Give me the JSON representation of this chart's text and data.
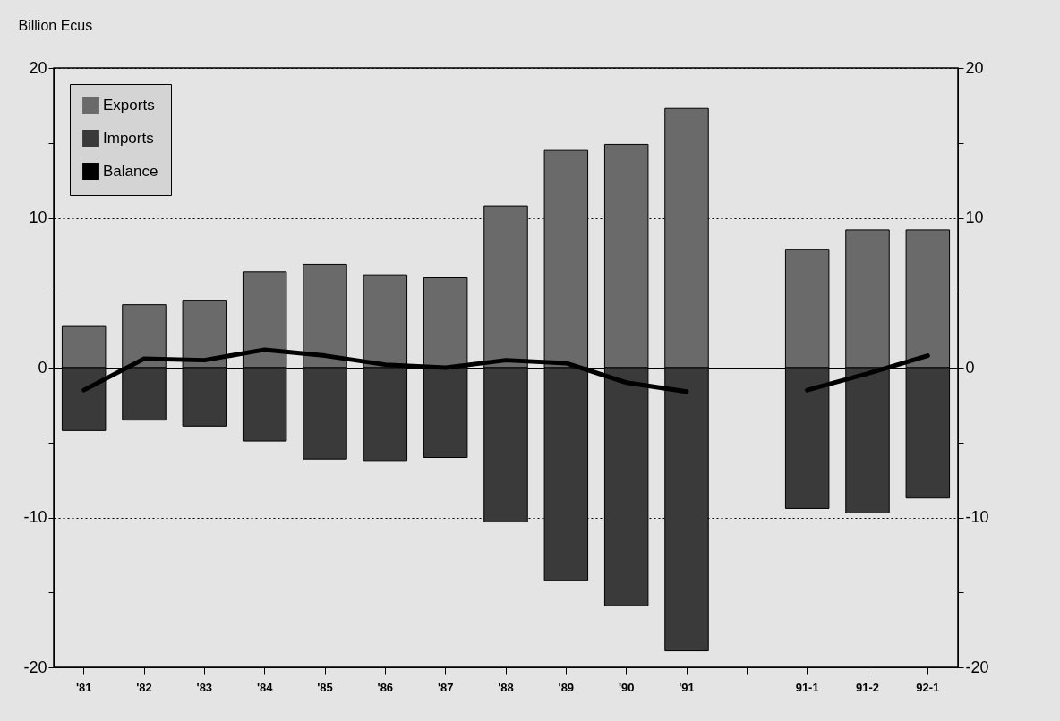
{
  "chart_data": {
    "type": "bar",
    "ylabel": "Billion Ecus",
    "categories": [
      "'81",
      "'82",
      "'83",
      "'84",
      "'85",
      "'86",
      "'87",
      "'88",
      "'89",
      "'90",
      "'91",
      null,
      "91-1",
      "91-2",
      "92-1"
    ],
    "series": [
      {
        "name": "Exports",
        "type": "bar",
        "color": "#6a6a6a",
        "values": [
          2.8,
          4.2,
          4.5,
          6.4,
          6.9,
          6.2,
          6.0,
          10.8,
          14.5,
          14.9,
          17.3,
          null,
          7.9,
          9.2,
          9.2
        ]
      },
      {
        "name": "Imports",
        "type": "bar",
        "color": "#3a3a3a",
        "values": [
          -4.2,
          -3.5,
          -3.9,
          -4.9,
          -6.1,
          -6.2,
          -6.0,
          -10.3,
          -14.2,
          -15.9,
          -18.9,
          null,
          -9.4,
          -9.7,
          -8.7
        ]
      },
      {
        "name": "Balance",
        "type": "line",
        "color": "#000000",
        "values": [
          -1.5,
          0.6,
          0.5,
          1.2,
          0.8,
          0.2,
          0.0,
          0.5,
          0.3,
          -1.0,
          -1.6,
          null,
          -1.5,
          -0.4,
          0.8
        ]
      }
    ],
    "ylim": [
      -20,
      20
    ],
    "yticks": [
      -20,
      {
        "value": -15,
        "label": null
      },
      -10,
      {
        "value": -5,
        "label": null
      },
      0,
      {
        "value": 5,
        "label": null
      },
      10,
      {
        "value": 15,
        "label": null
      },
      20
    ],
    "y2lim": [
      -20,
      20
    ],
    "y2ticks": [
      -20,
      {
        "value": -15,
        "label": null
      },
      -10,
      {
        "value": -5,
        "label": null
      },
      0,
      {
        "value": 5,
        "label": null
      },
      10,
      {
        "value": 15,
        "label": null
      },
      20
    ],
    "stacked": true,
    "grid": "y",
    "legend": "top left"
  }
}
